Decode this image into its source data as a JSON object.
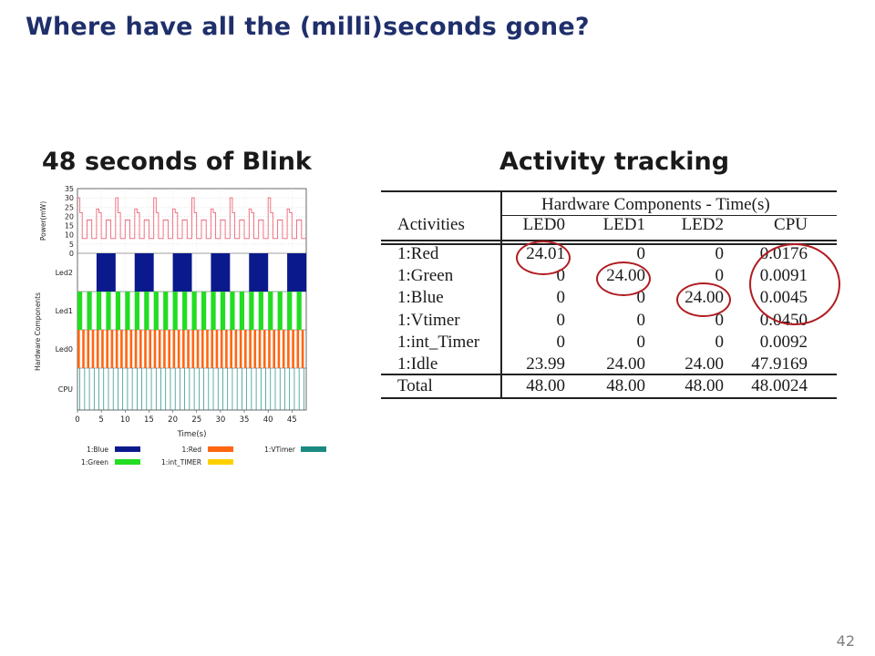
{
  "slide": {
    "title": "Where have all the (milli)seconds gone?",
    "page_number": "42"
  },
  "left_panel": {
    "heading": "48 seconds of Blink"
  },
  "right_panel": {
    "heading": "Activity tracking"
  },
  "chart_data": {
    "type": "timeline",
    "ylabel_power": "Power(mW)",
    "power_ticks": [
      "35",
      "30",
      "25",
      "20",
      "15",
      "10",
      "5",
      "0"
    ],
    "ylabel_components": "Hardware Components",
    "rows": [
      "Led2",
      "Led1",
      "Led0",
      "CPU"
    ],
    "xlabel": "Time(s)",
    "x_ticks": [
      "0",
      "5",
      "10",
      "15",
      "20",
      "25",
      "30",
      "35",
      "40",
      "45"
    ],
    "xlim": [
      0,
      48
    ],
    "power_range": [
      0,
      35
    ],
    "colors": {
      "blue": "#0a1a8c",
      "green": "#22dd22",
      "red": "#ff6611",
      "vtimer": "#1a8a80",
      "int_timer": "#ffd000",
      "power_line": "#ee6677"
    },
    "led2_period_s": 8,
    "led1_period_s": 2,
    "led0_period_s": 1,
    "legend": [
      {
        "label": "1:Blue",
        "color": "#0a1a8c"
      },
      {
        "label": "1:Red",
        "color": "#ff6611"
      },
      {
        "label": "1:VTimer",
        "color": "#1a8a80"
      },
      {
        "label": "1:Green",
        "color": "#22dd22"
      },
      {
        "label": "1:int_TIMER",
        "color": "#ffd000"
      }
    ]
  },
  "table": {
    "group_header": "Hardware Components - Time(s)",
    "columns": [
      "Activities",
      "LED0",
      "LED1",
      "LED2",
      "CPU"
    ],
    "rows": [
      {
        "activity": "1:Red",
        "values": [
          "24.01",
          "0",
          "0",
          "0.0176"
        ]
      },
      {
        "activity": "1:Green",
        "values": [
          "0",
          "24.00",
          "0",
          "0.0091"
        ]
      },
      {
        "activity": "1:Blue",
        "values": [
          "0",
          "0",
          "24.00",
          "0.0045"
        ]
      },
      {
        "activity": "1:Vtimer",
        "values": [
          "0",
          "0",
          "0",
          "0.0450"
        ]
      },
      {
        "activity": "1:int_Timer",
        "values": [
          "0",
          "0",
          "0",
          "0.0092"
        ]
      },
      {
        "activity": "1:Idle",
        "values": [
          "23.99",
          "24.00",
          "24.00",
          "47.9169"
        ]
      }
    ],
    "total": {
      "activity": "Total",
      "values": [
        "48.00",
        "48.00",
        "48.00",
        "48.0024"
      ]
    }
  }
}
